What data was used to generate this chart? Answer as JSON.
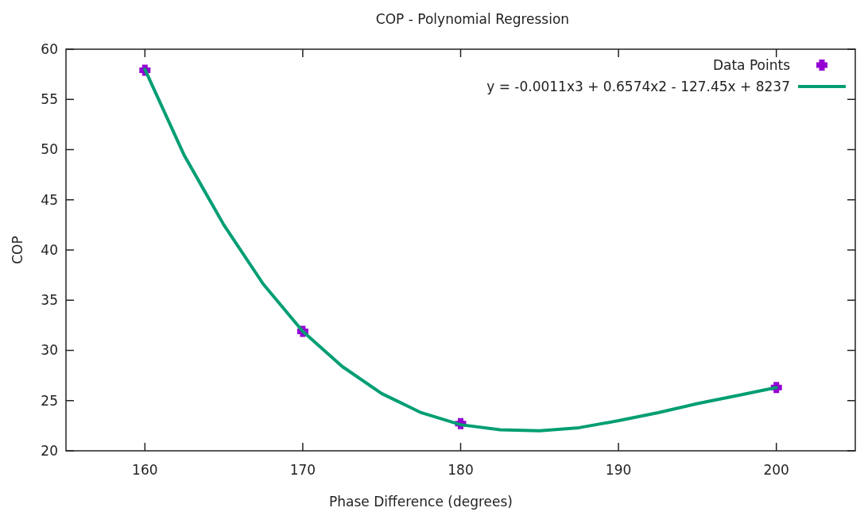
{
  "chart_data": {
    "type": "scatter",
    "title": "COP - Polynomial Regression",
    "xlabel": "Phase Difference (degrees)",
    "ylabel": "COP",
    "xlim": [
      155,
      205
    ],
    "xticks": [
      160,
      170,
      180,
      190,
      200
    ],
    "ylim": [
      20,
      60
    ],
    "yticks": [
      20,
      25,
      30,
      35,
      40,
      45,
      50,
      55,
      60
    ],
    "grid": false,
    "legend": "top right",
    "series": [
      {
        "name": "Data Points",
        "marker": "cross",
        "color": "#9400d3",
        "x": [
          160,
          170,
          180,
          200
        ],
        "values": [
          57.9,
          31.9,
          22.7,
          26.3
        ]
      },
      {
        "name": "y = -0.0011x3 + 0.6574x2 - 127.45x + 8237",
        "type": "line",
        "marker": "none",
        "line_style": "solid",
        "color": "#009e73",
        "x": [
          160,
          162.5,
          165,
          167.5,
          170,
          172.5,
          175,
          177.5,
          180,
          182.5,
          185,
          187.5,
          190,
          192.5,
          195,
          197.5,
          200
        ],
        "values": [
          58,
          49.4,
          42.5,
          36.6,
          31.9,
          28.4,
          25.7,
          23.8,
          22.6,
          22.1,
          22.0,
          22.3,
          23.0,
          23.8,
          24.7,
          25.5,
          26.3
        ]
      }
    ]
  }
}
